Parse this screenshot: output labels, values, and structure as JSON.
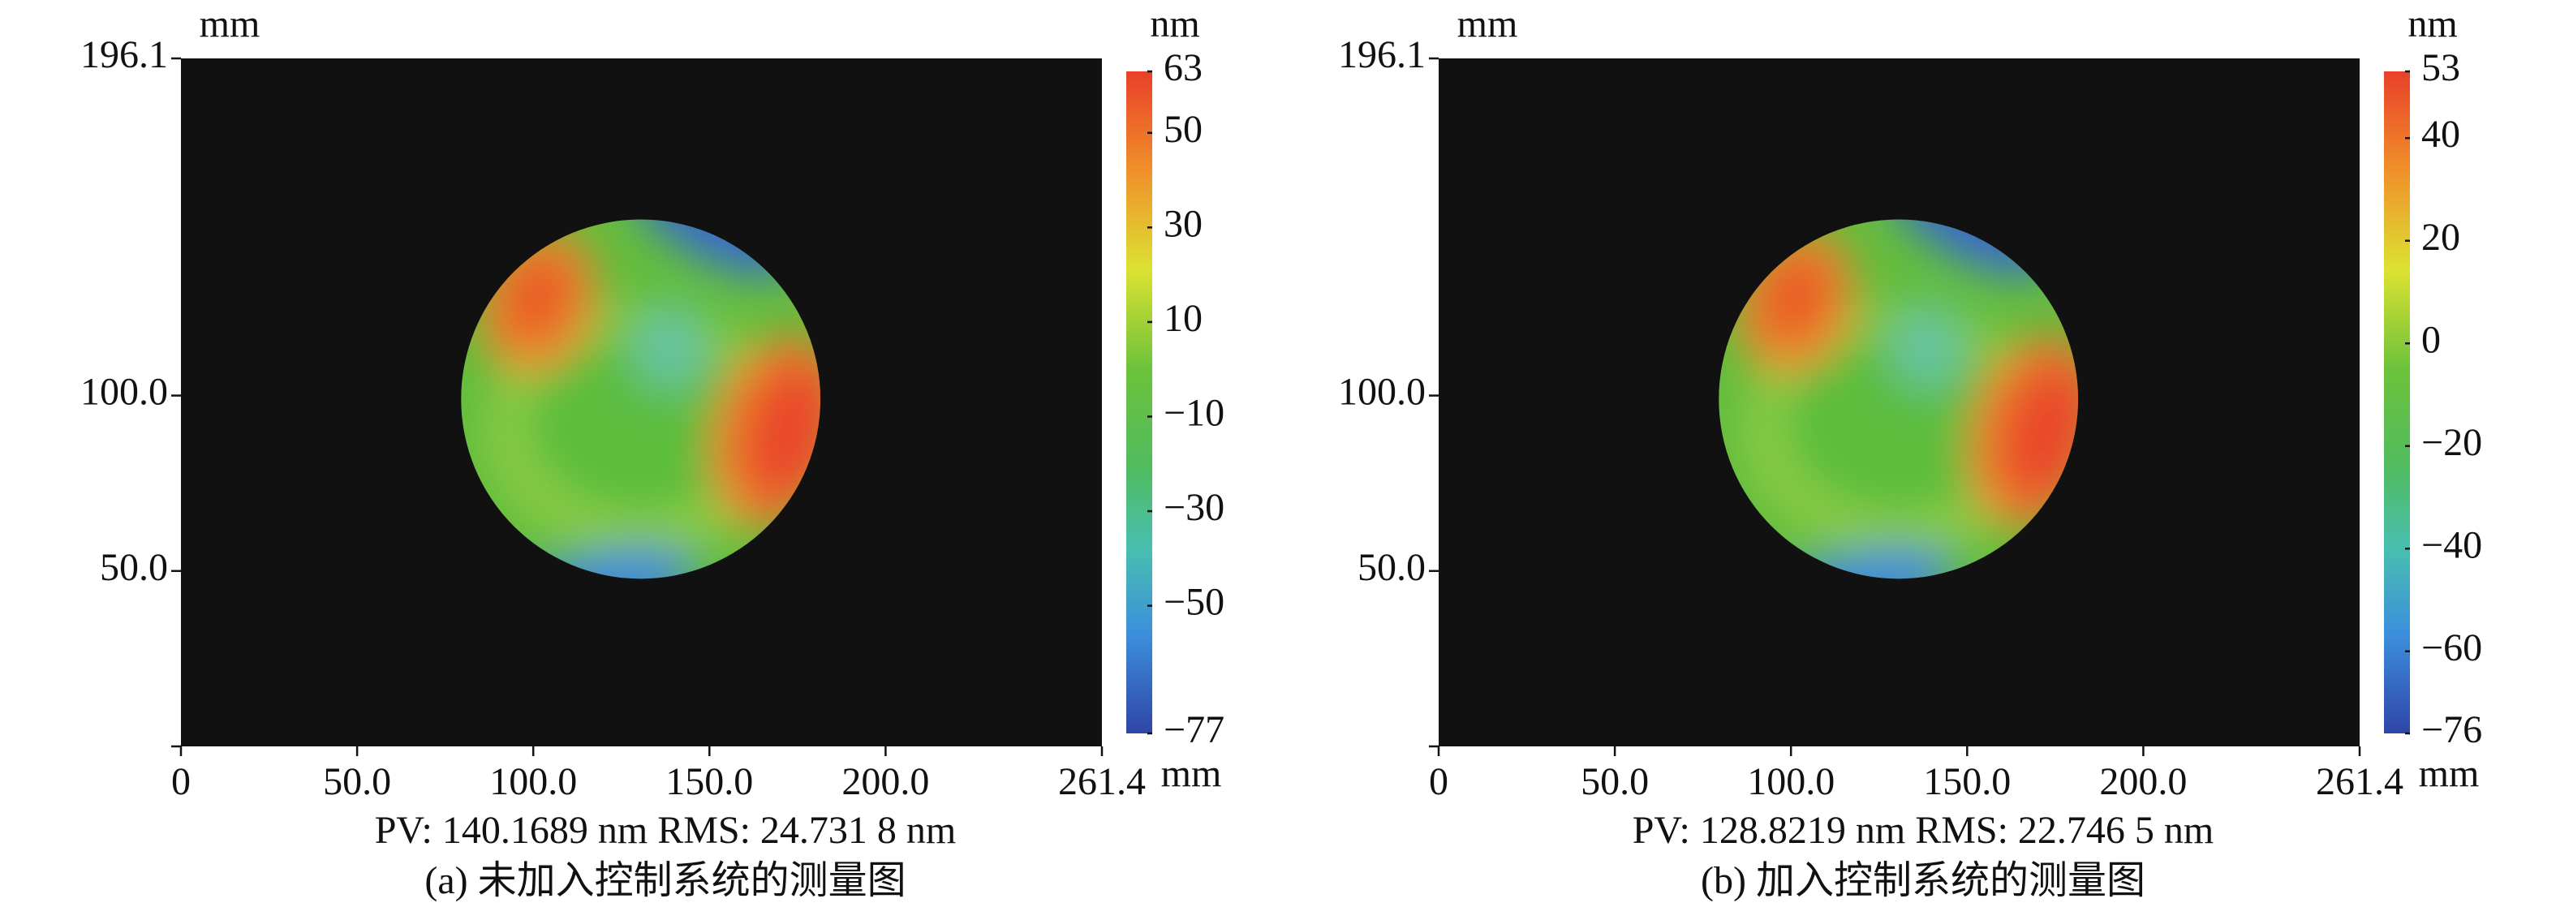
{
  "chart_data": [
    {
      "type": "surface-map",
      "ylabel": "mm",
      "xlabel": "mm",
      "xlim": [
        0,
        261.4
      ],
      "ylim": [
        0,
        196.1
      ],
      "xticks": [
        0,
        {
          "value": 50,
          "label": "50.0"
        },
        {
          "value": 100,
          "label": "100.0"
        },
        {
          "value": 150,
          "label": "150.0"
        },
        {
          "value": 200,
          "label": "200.0"
        },
        261.4
      ],
      "yticks": [
        {
          "value": 50,
          "label": "50.0"
        },
        {
          "value": 100,
          "label": "100.0"
        },
        196.1
      ],
      "colorbar": {
        "unit": "nm",
        "lim": [
          -77,
          63
        ],
        "ticks": [
          63,
          50,
          30,
          10,
          {
            "value": -10,
            "label": "−10"
          },
          {
            "value": -30,
            "label": "−30"
          },
          {
            "value": -50,
            "label": "−50"
          },
          {
            "value": -77,
            "label": "−77"
          }
        ]
      },
      "annotation": "PV: 140.1689 nm RMS: 24.731 8 nm",
      "caption": "(a) 未加入控制系统的测量图"
    },
    {
      "type": "surface-map",
      "ylabel": "mm",
      "xlabel": "mm",
      "xlim": [
        0,
        261.4
      ],
      "ylim": [
        0,
        196.1
      ],
      "xticks": [
        0,
        {
          "value": 50,
          "label": "50.0"
        },
        {
          "value": 100,
          "label": "100.0"
        },
        {
          "value": 150,
          "label": "150.0"
        },
        {
          "value": 200,
          "label": "200.0"
        },
        261.4
      ],
      "yticks": [
        {
          "value": 50,
          "label": "50.0"
        },
        {
          "value": 100,
          "label": "100.0"
        },
        196.1
      ],
      "colorbar": {
        "unit": "nm",
        "lim": [
          -76,
          53
        ],
        "ticks": [
          53,
          40,
          20,
          0,
          {
            "value": -20,
            "label": "−20"
          },
          {
            "value": -40,
            "label": "−40"
          },
          {
            "value": -60,
            "label": "−60"
          },
          {
            "value": -76,
            "label": "−76"
          }
        ]
      },
      "annotation": "PV: 128.8219 nm RMS: 22.746 5 nm",
      "caption": "(b) 加入控制系统的测量图"
    }
  ]
}
